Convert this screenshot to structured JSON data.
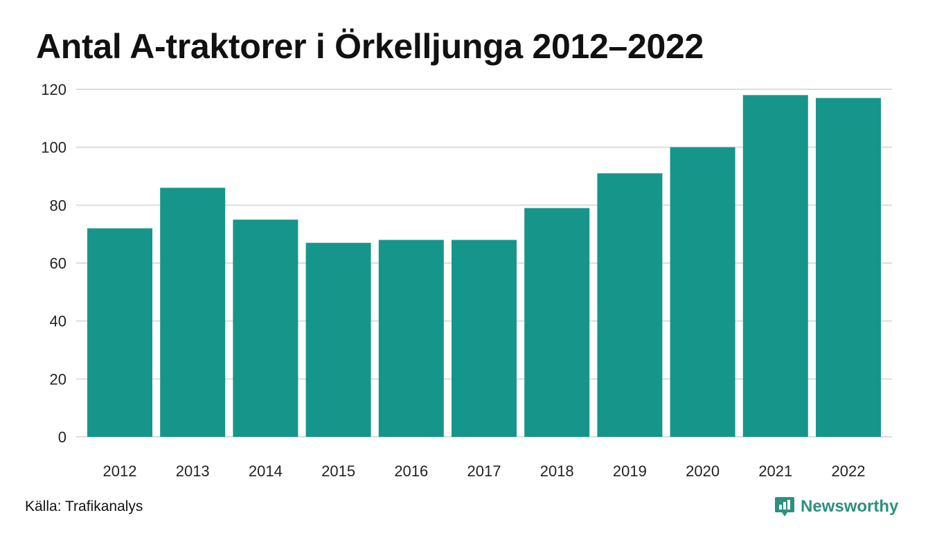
{
  "chart_data": {
    "type": "bar",
    "title": "Antal A-traktorer i Örkelljunga 2012–2022",
    "categories": [
      "2012",
      "2013",
      "2014",
      "2015",
      "2016",
      "2017",
      "2018",
      "2019",
      "2020",
      "2021",
      "2022"
    ],
    "values": [
      72,
      86,
      75,
      67,
      68,
      68,
      79,
      91,
      100,
      118,
      117
    ],
    "ylim": [
      0,
      120
    ],
    "yticks": [
      0,
      20,
      40,
      60,
      80,
      100,
      120
    ],
    "xlabel": "",
    "ylabel": "",
    "grid": true,
    "bar_color": "#16968a"
  },
  "footer": {
    "source": "Källa: Trafikanalys",
    "brand": "Newsworthy",
    "brand_color": "#2e8f7f",
    "brand_icon": "bar-chart-speech-bubble-icon"
  }
}
